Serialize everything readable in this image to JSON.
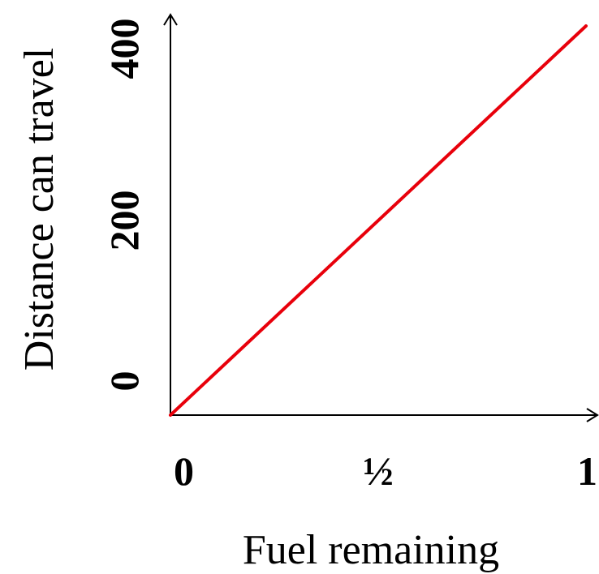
{
  "chart_data": {
    "type": "line",
    "xlabel": "Fuel remaining",
    "ylabel": "Distance can travel",
    "x_ticks": [
      {
        "value": 0,
        "label": "0"
      },
      {
        "value": 0.5,
        "label": "½"
      },
      {
        "value": 1,
        "label": "1"
      }
    ],
    "y_ticks": [
      {
        "value": 0,
        "label": "0"
      },
      {
        "value": 200,
        "label": "200"
      },
      {
        "value": 400,
        "label": "400"
      }
    ],
    "xlim": [
      0,
      1
    ],
    "ylim": [
      0,
      400
    ],
    "grid": false,
    "series": [
      {
        "color": "#e8000b",
        "points": [
          {
            "x": 0,
            "y": 0
          },
          {
            "x": 1,
            "y": 400
          }
        ]
      }
    ]
  }
}
